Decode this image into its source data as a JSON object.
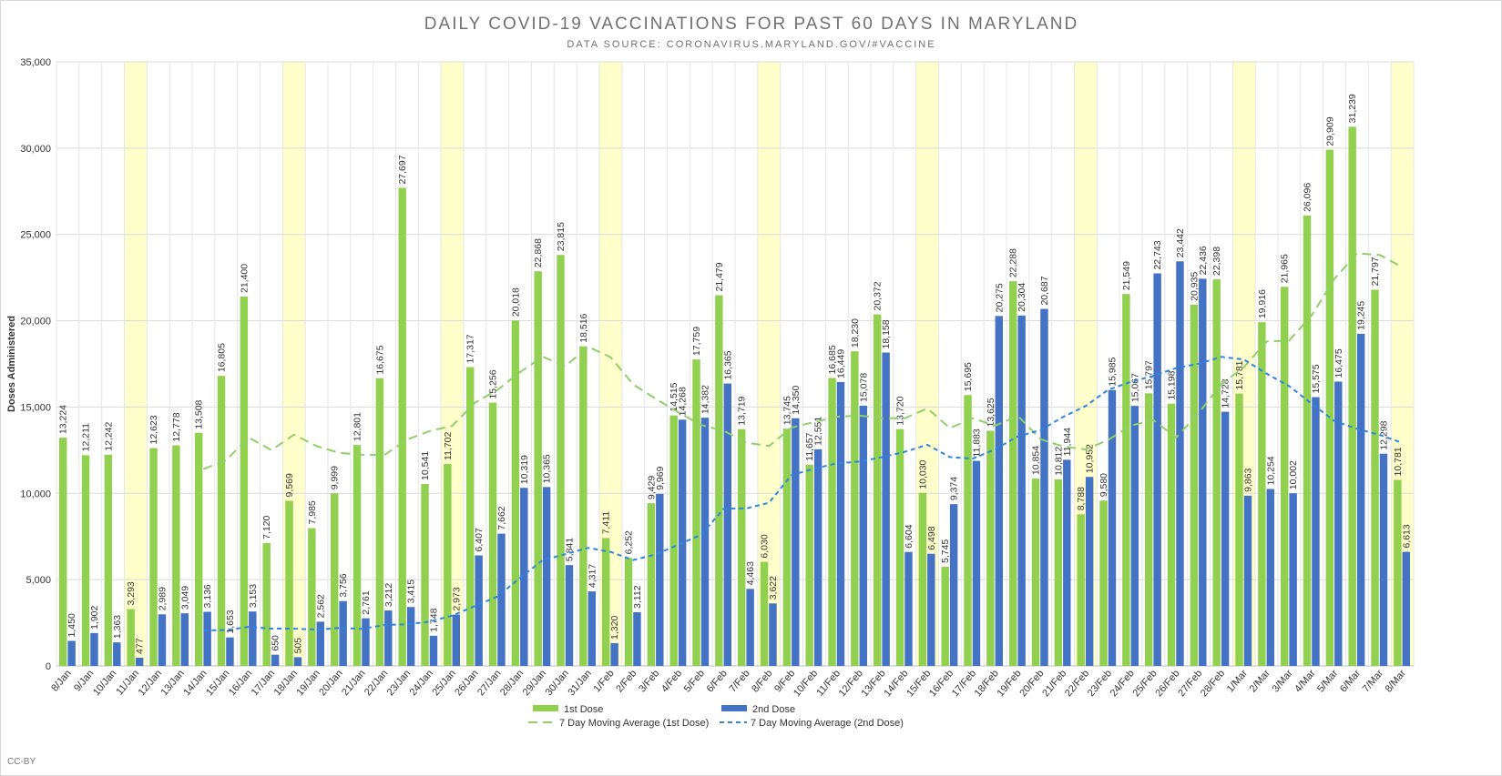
{
  "chart_data": {
    "type": "bar",
    "title": "DAILY COVID-19 VACCINATIONS FOR PAST 60 DAYS IN MARYLAND",
    "subtitle": "DATA SOURCE: CORONAVIRUS.MARYLAND.GOV/#VACCINE",
    "ylabel": "Doses Administered",
    "credit": "CC-BY",
    "categories": [
      "8/Jan",
      "9/Jan",
      "10/Jan",
      "11/Jan",
      "12/Jan",
      "13/Jan",
      "14/Jan",
      "15/Jan",
      "16/Jan",
      "17/Jan",
      "18/Jan",
      "19/Jan",
      "20/Jan",
      "21/Jan",
      "22/Jan",
      "23/Jan",
      "24/Jan",
      "25/Jan",
      "26/Jan",
      "27/Jan",
      "28/Jan",
      "29/Jan",
      "30/Jan",
      "31/Jan",
      "1/Feb",
      "2/Feb",
      "3/Feb",
      "4/Feb",
      "5/Feb",
      "6/Feb",
      "7/Feb",
      "8/Feb",
      "9/Feb",
      "10/Feb",
      "11/Feb",
      "12/Feb",
      "13/Feb",
      "14/Feb",
      "15/Feb",
      "16/Feb",
      "17/Feb",
      "18/Feb",
      "19/Feb",
      "20/Feb",
      "21/Feb",
      "22/Feb",
      "23/Feb",
      "24/Feb",
      "25/Feb",
      "26/Feb",
      "27/Feb",
      "28/Feb",
      "1/Mar",
      "2/Mar",
      "3/Mar",
      "4/Mar",
      "5/Mar",
      "6/Mar",
      "7/Mar",
      "8/Mar"
    ],
    "highlight": [
      3,
      10,
      17,
      24,
      31,
      38,
      45,
      52,
      59
    ],
    "highlight_color": "#ffffcc",
    "series": [
      {
        "name": "1st Dose",
        "kind": "bar",
        "color": "#92d050",
        "values": [
          13224,
          12211,
          12242,
          3293,
          12623,
          12778,
          13508,
          16805,
          21400,
          7120,
          9569,
          7985,
          9999,
          12801,
          16675,
          27697,
          10541,
          11702,
          17317,
          15256,
          20018,
          22868,
          23815,
          18516,
          7411,
          6252,
          9429,
          14515,
          17759,
          21479,
          13719,
          6030,
          13745,
          11657,
          16685,
          18230,
          20372,
          13720,
          10030,
          5745,
          15695,
          13625,
          22288,
          10854,
          10812,
          8788,
          9580,
          21549,
          15797,
          15198,
          20935,
          22398,
          15781,
          19916,
          21965,
          26096,
          29909,
          31239,
          21797,
          10781
        ],
        "value_labels": [
          "13,224",
          "12,211",
          "12,242",
          "3,293",
          "12,623",
          "12,778",
          "13,508",
          "16,805",
          "21,400",
          "7,120",
          "9,569",
          "7,985",
          "9,999",
          "12,801",
          "16,675",
          "27,697",
          "10,541",
          "11,702",
          "17,317",
          "15,256",
          "20,018",
          "22,868",
          "23,815",
          "18,516",
          "7,411",
          "6,252",
          "9,429",
          "14,515",
          "17,759",
          "21,479",
          "13,719",
          "6,030",
          "13,745",
          "11,657",
          "16,685",
          "18,230",
          "20,372",
          "13,720",
          "10,030",
          "5,745",
          "15,695",
          "13,625",
          "22,288",
          "10,854",
          "10,812",
          "8,788",
          "9,580",
          "21,549",
          "15,797",
          "15,198",
          "20,935",
          "22,398",
          "15,781",
          "19,916",
          "21,965",
          "26,096",
          "29,909",
          "31,239",
          "21,797",
          "10,781"
        ]
      },
      {
        "name": "2nd Dose",
        "kind": "bar",
        "color": "#4472c4",
        "values": [
          1450,
          1902,
          1363,
          477,
          2989,
          3049,
          3136,
          1653,
          3153,
          650,
          505,
          2562,
          3756,
          2761,
          3212,
          3415,
          1748,
          2973,
          6407,
          7662,
          10319,
          10365,
          5841,
          4317,
          1320,
          3112,
          9969,
          14268,
          14382,
          16365,
          4463,
          3622,
          14350,
          12551,
          16449,
          15078,
          18158,
          6604,
          6498,
          9374,
          11883,
          20275,
          20304,
          20687,
          11944,
          10952,
          15985,
          15067,
          22743,
          23442,
          22436,
          14728,
          9863,
          10254,
          10002,
          15575,
          16475,
          19245,
          12298,
          6613
        ],
        "value_labels": [
          "1,450",
          "1,902",
          "1,363",
          "477",
          "2,989",
          "3,049",
          "3,136",
          "1,653",
          "3,153",
          "650",
          "505",
          "2,562",
          "3,756",
          "2,761",
          "3,212",
          "3,415",
          "1,748",
          "2,973",
          "6,407",
          "7,662",
          "10,319",
          "10,365",
          "5,841",
          "4,317",
          "1,320",
          "3,112",
          "9,969",
          "14,268",
          "14,382",
          "16,365",
          "4,463",
          "3,622",
          "14,350",
          "12,551",
          "16,449",
          "15,078",
          "18,158",
          "6,604",
          "6,498",
          "9,374",
          "11,883",
          "20,275",
          "20,304",
          "20,687",
          "11,944",
          "10,952",
          "15,985",
          "15,067",
          "22,743",
          "23,442",
          "22,436",
          "14,728",
          "9,863",
          "10,254",
          "10,002",
          "15,575",
          "16,475",
          "19,245",
          "12,298",
          "6,613"
        ]
      },
      {
        "name": "7 Day Moving Average (1st Dose)",
        "kind": "line",
        "color": "#8fd06a",
        "dash": "10,6",
        "values": [
          null,
          null,
          null,
          null,
          null,
          null,
          11411,
          11923,
          13236,
          12504,
          13400,
          12738,
          12341,
          12240,
          12221,
          13121,
          13610,
          13914,
          15247,
          15998,
          17029,
          17914,
          17360,
          18499,
          17886,
          16305,
          15473,
          14687,
          13957,
          13623,
          12938,
          12740,
          13811,
          14129,
          14439,
          14506,
          14348,
          14348,
          14920,
          13777,
          14354,
          13917,
          14496,
          13137,
          12721,
          12544,
          13092,
          13928,
          14238,
          13225,
          14666,
          16321,
          17320,
          18796,
          18856,
          20327,
          22429,
          23901,
          23815,
          23100
        ]
      },
      {
        "name": "7 Day Moving Average (2nd Dose)",
        "kind": "line",
        "color": "#2e86de",
        "dash": "5,4",
        "values": [
          null,
          null,
          null,
          null,
          null,
          null,
          2052,
          2081,
          2260,
          2158,
          2162,
          2101,
          2202,
          2149,
          2371,
          2409,
          2566,
          2918,
          3467,
          4025,
          5105,
          6127,
          6474,
          6841,
          6604,
          6134,
          6463,
          7027,
          7601,
          9105,
          9126,
          9454,
          11060,
          11429,
          11740,
          11840,
          12096,
          12402,
          12813,
          12102,
          12006,
          12553,
          13299,
          13661,
          14424,
          15060,
          16004,
          16459,
          16812,
          17260,
          17510,
          17908,
          17752,
          16933,
          16210,
          15186,
          14190,
          13735,
          13387,
          12923
        ]
      }
    ],
    "ylim": [
      0,
      35000
    ],
    "yticks": [
      0,
      {
        "value": 5000,
        "label": "5,000"
      },
      {
        "value": 10000,
        "label": "10,000"
      },
      {
        "value": 15000,
        "label": "15,000"
      },
      {
        "value": 20000,
        "label": "20,000"
      },
      {
        "value": 25000,
        "label": "25,000"
      },
      {
        "value": 30000,
        "label": "30,000"
      },
      {
        "value": 35000,
        "label": "35,000"
      }
    ],
    "grid": true
  }
}
